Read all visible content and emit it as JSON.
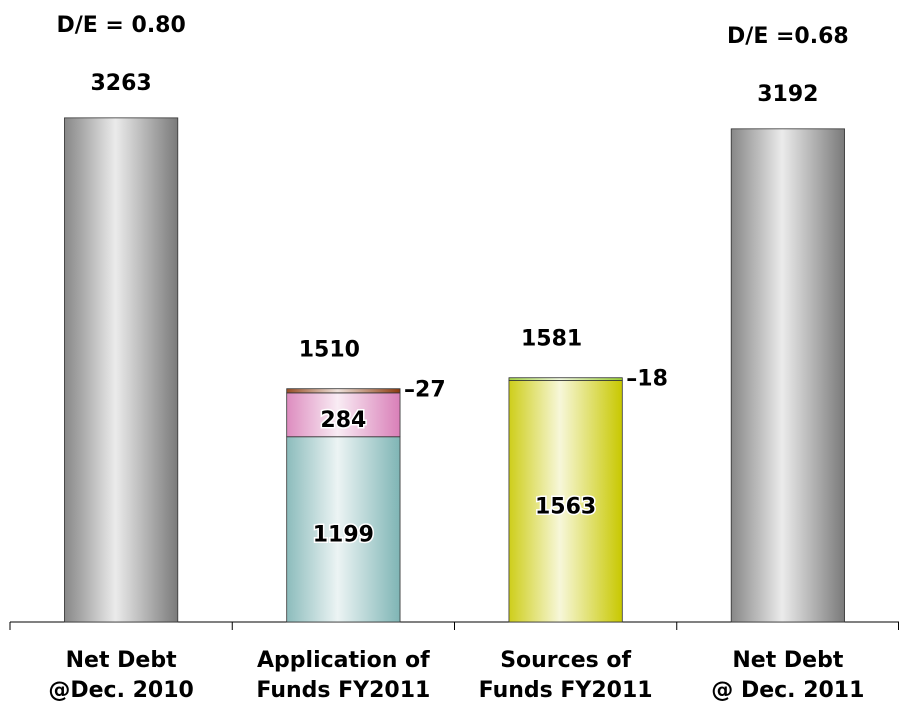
{
  "chart_data": {
    "type": "stacked_bar",
    "categories": [
      [
        "Net Debt",
        "@Dec. 2010"
      ],
      [
        "Application of",
        "Funds FY2011"
      ],
      [
        "Sources of",
        "Funds FY2011"
      ],
      [
        "Net Debt",
        "@ Dec. 2011"
      ]
    ],
    "series": [
      {
        "color": "#7a7a7a",
        "values": [
          3263,
          null,
          null,
          3192
        ]
      },
      {
        "color": "#7fb5b5",
        "values": [
          null,
          1199,
          null,
          null
        ]
      },
      {
        "color": "#d97fb8",
        "values": [
          null,
          284,
          null,
          null
        ]
      },
      {
        "color": "#8b3a0e",
        "values": [
          null,
          27,
          null,
          null
        ],
        "value_labels": [
          null,
          "–27",
          null,
          null
        ]
      },
      {
        "color": "#c8c800",
        "values": [
          null,
          null,
          1563,
          null
        ]
      },
      {
        "color": "#9acd32",
        "values": [
          null,
          null,
          18,
          null
        ],
        "value_labels": [
          null,
          null,
          "–18",
          null
        ]
      }
    ],
    "totals": [
      null,
      1510,
      1581,
      null
    ],
    "annotations": [
      {
        "category": 0,
        "text": "D/E = 0.80"
      },
      {
        "category": 3,
        "text": "D/E =0.68"
      }
    ],
    "ylim": [
      0,
      4000
    ]
  }
}
